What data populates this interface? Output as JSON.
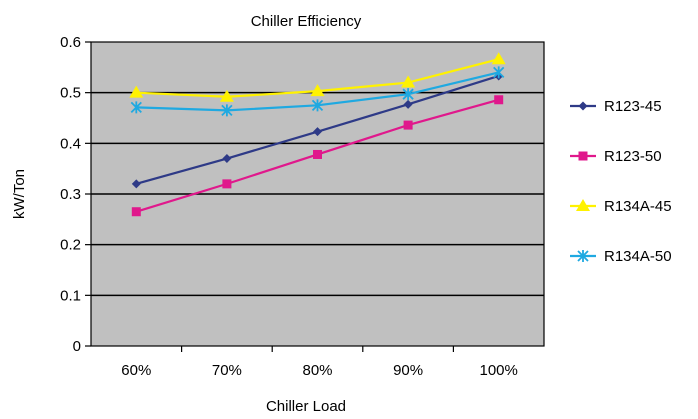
{
  "chart_data": {
    "type": "line",
    "title": "Chiller Efficiency",
    "xlabel": "Chiller Load",
    "ylabel": "kW/Ton",
    "categories": [
      "60%",
      "70%",
      "80%",
      "90%",
      "100%"
    ],
    "ylim": [
      0,
      0.6
    ],
    "yticks": [
      "0",
      "0.1",
      "0.2",
      "0.3",
      "0.4",
      "0.5",
      "0.6"
    ],
    "grid": true,
    "legend_position": "right",
    "series": [
      {
        "name": "R123-45",
        "values": [
          0.32,
          0.37,
          0.423,
          0.477,
          0.533
        ],
        "color": "#2E3A87",
        "marker": "diamond"
      },
      {
        "name": "R123-50",
        "values": [
          0.265,
          0.32,
          0.378,
          0.436,
          0.486
        ],
        "color": "#E0188C",
        "marker": "square"
      },
      {
        "name": "R134A-45",
        "values": [
          0.5,
          0.492,
          0.503,
          0.52,
          0.566
        ],
        "color": "#FFF200",
        "marker": "triangle"
      },
      {
        "name": "R134A-50",
        "values": [
          0.471,
          0.465,
          0.475,
          0.497,
          0.54
        ],
        "color": "#1FA9E1",
        "marker": "star"
      }
    ]
  }
}
